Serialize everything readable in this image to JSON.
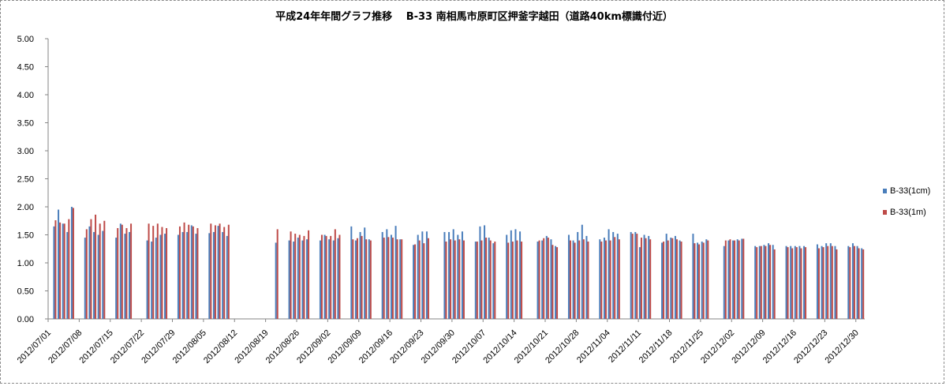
{
  "chart_data": {
    "type": "bar",
    "title": "平成24年年間グラフ推移　 B-33 南相馬市原町区押釜字越田（道路40km標識付近）",
    "ylim": [
      0,
      5
    ],
    "yticks": [
      "0.00",
      "0.50",
      "1.00",
      "1.50",
      "2.00",
      "2.50",
      "3.00",
      "3.50",
      "4.00",
      "4.50",
      "5.00"
    ],
    "xrange": [
      "2012/07/01",
      "2012/12/31"
    ],
    "xtick_labels": [
      "2012/07/01",
      "2012/07/08",
      "2012/07/15",
      "2012/07/22",
      "2012/07/29",
      "2012/08/05",
      "2012/08/12",
      "2012/08/19",
      "2012/08/26",
      "2012/09/02",
      "2012/09/09",
      "2012/09/16",
      "2012/09/23",
      "2012/09/30",
      "2012/10/07",
      "2012/10/14",
      "2012/10/21",
      "2012/10/28",
      "2012/11/04",
      "2012/11/11",
      "2012/11/18",
      "2012/11/25",
      "2012/12/02",
      "2012/12/09",
      "2012/12/16",
      "2012/12/23",
      "2012/12/30"
    ],
    "legend_position": "right",
    "grid": false,
    "series": [
      {
        "name": "B-33(1cm)",
        "color": "#4a7ebb"
      },
      {
        "name": "B-33(1m)",
        "color": "#be4b48"
      }
    ],
    "points": [
      [
        "2012/07/02",
        1.65,
        1.76
      ],
      [
        "2012/07/03",
        1.95,
        1.72
      ],
      [
        "2012/07/04",
        1.7,
        1.7
      ],
      [
        "2012/07/05",
        1.55,
        1.78
      ],
      [
        "2012/07/06",
        2.0,
        1.98
      ],
      [
        "2012/07/09",
        1.45,
        1.6
      ],
      [
        "2012/07/10",
        1.65,
        1.78
      ],
      [
        "2012/07/11",
        1.55,
        1.86
      ],
      [
        "2012/07/12",
        1.5,
        1.7
      ],
      [
        "2012/07/13",
        1.57,
        1.75
      ],
      [
        "2012/07/16",
        1.45,
        1.62
      ],
      [
        "2012/07/17",
        1.7,
        1.68
      ],
      [
        "2012/07/18",
        1.52,
        1.62
      ],
      [
        "2012/07/19",
        1.55,
        1.7
      ],
      [
        "2012/07/23",
        1.4,
        1.7
      ],
      [
        "2012/07/24",
        1.38,
        1.66
      ],
      [
        "2012/07/25",
        1.45,
        1.7
      ],
      [
        "2012/07/26",
        1.5,
        1.64
      ],
      [
        "2012/07/27",
        1.52,
        1.62
      ],
      [
        "2012/07/30",
        1.5,
        1.65
      ],
      [
        "2012/07/31",
        1.55,
        1.72
      ],
      [
        "2012/08/01",
        1.55,
        1.68
      ],
      [
        "2012/08/02",
        1.67,
        1.65
      ],
      [
        "2012/08/03",
        1.52,
        1.62
      ],
      [
        "2012/08/06",
        1.53,
        1.7
      ],
      [
        "2012/08/07",
        1.55,
        1.67
      ],
      [
        "2012/08/08",
        1.66,
        1.7
      ],
      [
        "2012/08/09",
        1.55,
        1.64
      ],
      [
        "2012/08/10",
        1.48,
        1.68
      ],
      [
        "2012/08/21",
        1.36,
        1.6
      ],
      [
        "2012/08/24",
        1.4,
        1.56
      ],
      [
        "2012/08/25",
        1.38,
        1.52
      ],
      [
        "2012/08/26",
        1.45,
        1.5
      ],
      [
        "2012/08/27",
        1.4,
        1.48
      ],
      [
        "2012/08/28",
        1.42,
        1.58
      ],
      [
        "2012/08/31",
        1.4,
        1.5
      ],
      [
        "2012/09/01",
        1.5,
        1.48
      ],
      [
        "2012/09/02",
        1.42,
        1.48
      ],
      [
        "2012/09/03",
        1.4,
        1.6
      ],
      [
        "2012/09/04",
        1.44,
        1.5
      ],
      [
        "2012/09/07",
        1.65,
        1.42
      ],
      [
        "2012/09/08",
        1.4,
        1.44
      ],
      [
        "2012/09/09",
        1.55,
        1.48
      ],
      [
        "2012/09/10",
        1.63,
        1.42
      ],
      [
        "2012/09/11",
        1.42,
        1.4
      ],
      [
        "2012/09/14",
        1.55,
        1.45
      ],
      [
        "2012/09/15",
        1.6,
        1.46
      ],
      [
        "2012/09/16",
        1.5,
        1.45
      ],
      [
        "2012/09/17",
        1.66,
        1.42
      ],
      [
        "2012/09/18",
        1.42,
        1.42
      ],
      [
        "2012/09/21",
        1.32,
        1.33
      ],
      [
        "2012/09/22",
        1.5,
        1.4
      ],
      [
        "2012/09/23",
        1.56,
        1.35
      ],
      [
        "2012/09/24",
        1.56,
        1.44
      ],
      [
        "2012/09/28",
        1.55,
        1.38
      ],
      [
        "2012/09/29",
        1.55,
        1.42
      ],
      [
        "2012/09/30",
        1.6,
        1.4
      ],
      [
        "2012/10/01",
        1.5,
        1.42
      ],
      [
        "2012/10/02",
        1.56,
        1.4
      ],
      [
        "2012/10/05",
        1.38,
        1.38
      ],
      [
        "2012/10/06",
        1.65,
        1.4
      ],
      [
        "2012/10/07",
        1.67,
        1.45
      ],
      [
        "2012/10/08",
        1.45,
        1.4
      ],
      [
        "2012/10/09",
        1.35,
        1.38
      ],
      [
        "2012/10/12",
        1.5,
        1.36
      ],
      [
        "2012/10/13",
        1.58,
        1.38
      ],
      [
        "2012/10/14",
        1.6,
        1.4
      ],
      [
        "2012/10/15",
        1.56,
        1.38
      ],
      [
        "2012/10/19",
        1.38,
        1.4
      ],
      [
        "2012/10/20",
        1.4,
        1.44
      ],
      [
        "2012/10/21",
        1.48,
        1.45
      ],
      [
        "2012/10/22",
        1.42,
        1.32
      ],
      [
        "2012/10/23",
        1.3,
        1.28
      ],
      [
        "2012/10/26",
        1.5,
        1.4
      ],
      [
        "2012/10/27",
        1.4,
        1.36
      ],
      [
        "2012/10/28",
        1.55,
        1.4
      ],
      [
        "2012/10/29",
        1.68,
        1.42
      ],
      [
        "2012/10/30",
        1.48,
        1.38
      ],
      [
        "2012/11/02",
        1.42,
        1.38
      ],
      [
        "2012/11/03",
        1.45,
        1.4
      ],
      [
        "2012/11/04",
        1.6,
        1.4
      ],
      [
        "2012/11/05",
        1.55,
        1.46
      ],
      [
        "2012/11/06",
        1.52,
        1.42
      ],
      [
        "2012/11/09",
        1.55,
        1.52
      ],
      [
        "2012/11/10",
        1.55,
        1.52
      ],
      [
        "2012/11/11",
        1.28,
        1.45
      ],
      [
        "2012/11/12",
        1.5,
        1.44
      ],
      [
        "2012/11/13",
        1.48,
        1.42
      ],
      [
        "2012/11/16",
        1.36,
        1.38
      ],
      [
        "2012/11/17",
        1.52,
        1.4
      ],
      [
        "2012/11/18",
        1.45,
        1.44
      ],
      [
        "2012/11/19",
        1.48,
        1.42
      ],
      [
        "2012/11/20",
        1.4,
        1.38
      ],
      [
        "2012/11/23",
        1.52,
        1.35
      ],
      [
        "2012/11/24",
        1.36,
        1.33
      ],
      [
        "2012/11/25",
        1.38,
        1.36
      ],
      [
        "2012/11/26",
        1.42,
        1.4
      ],
      [
        "2012/11/30",
        1.3,
        1.4
      ],
      [
        "2012/12/01",
        1.4,
        1.42
      ],
      [
        "2012/12/02",
        1.4,
        1.4
      ],
      [
        "2012/12/03",
        1.42,
        1.4
      ],
      [
        "2012/12/04",
        1.43,
        1.43
      ],
      [
        "2012/12/07",
        1.3,
        1.28
      ],
      [
        "2012/12/08",
        1.3,
        1.3
      ],
      [
        "2012/12/09",
        1.32,
        1.3
      ],
      [
        "2012/12/10",
        1.35,
        1.32
      ],
      [
        "2012/12/11",
        1.32,
        1.24
      ],
      [
        "2012/12/14",
        1.3,
        1.28
      ],
      [
        "2012/12/15",
        1.3,
        1.26
      ],
      [
        "2012/12/16",
        1.3,
        1.28
      ],
      [
        "2012/12/17",
        1.3,
        1.26
      ],
      [
        "2012/12/18",
        1.3,
        1.28
      ],
      [
        "2012/12/21",
        1.33,
        1.26
      ],
      [
        "2012/12/22",
        1.3,
        1.28
      ],
      [
        "2012/12/23",
        1.35,
        1.3
      ],
      [
        "2012/12/24",
        1.35,
        1.3
      ],
      [
        "2012/12/25",
        1.3,
        1.24
      ],
      [
        "2012/12/28",
        1.3,
        1.28
      ],
      [
        "2012/12/29",
        1.35,
        1.3
      ],
      [
        "2012/12/30",
        1.3,
        1.26
      ],
      [
        "2012/12/31",
        1.26,
        1.24
      ]
    ]
  }
}
